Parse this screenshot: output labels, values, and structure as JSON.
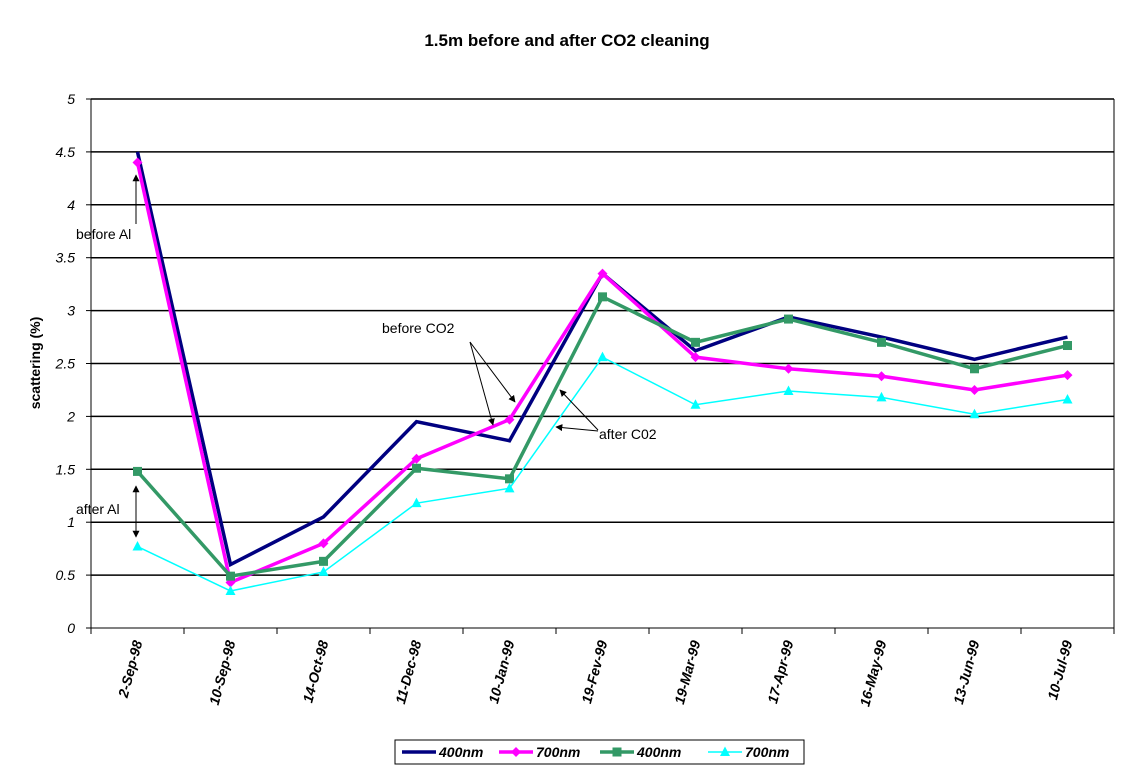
{
  "chart_data": {
    "type": "line",
    "title": "1.5m before and after CO2 cleaning",
    "xlabel": "",
    "ylabel": "scattering (%)",
    "ylim": [
      0,
      5
    ],
    "yticks": [
      "0",
      "0.5",
      "1",
      "1.5",
      "2",
      "2.5",
      "3",
      "3.5",
      "4",
      "4.5",
      "5"
    ],
    "categories": [
      "2-Sep-98",
      "10-Sep-98",
      "14-Oct-98",
      "11-Dec-98",
      "10-Jan-99",
      "19-Fev-99",
      "19-Mar-99",
      "17-Apr-99",
      "16-May-99",
      "13-Jun-99",
      "10-Jul-99"
    ],
    "grid": "horizontal",
    "legend_position": "bottom",
    "series": [
      {
        "name": "400nm",
        "color": "#000080",
        "marker": "none",
        "values": [
          4.5,
          0.6,
          1.05,
          1.95,
          1.77,
          3.35,
          2.62,
          2.94,
          2.75,
          2.54,
          2.75
        ]
      },
      {
        "name": "700nm",
        "color": "#ff00ff",
        "marker": "diamond",
        "values": [
          4.4,
          0.43,
          0.8,
          1.6,
          1.97,
          3.35,
          2.56,
          2.45,
          2.38,
          2.25,
          2.39
        ]
      },
      {
        "name": "400nm",
        "color": "#339966",
        "marker": "square",
        "values": [
          1.48,
          0.49,
          0.63,
          1.51,
          1.41,
          3.13,
          2.7,
          2.92,
          2.7,
          2.45,
          2.67
        ]
      },
      {
        "name": "700nm",
        "color": "#00ffff",
        "marker": "triangle",
        "values": [
          0.77,
          0.35,
          0.53,
          1.18,
          1.32,
          2.56,
          2.11,
          2.24,
          2.18,
          2.02,
          2.16
        ]
      }
    ],
    "annotations": [
      {
        "text": "before Al"
      },
      {
        "text": "after Al"
      },
      {
        "text": "before CO2"
      },
      {
        "text": "after C02"
      }
    ]
  }
}
